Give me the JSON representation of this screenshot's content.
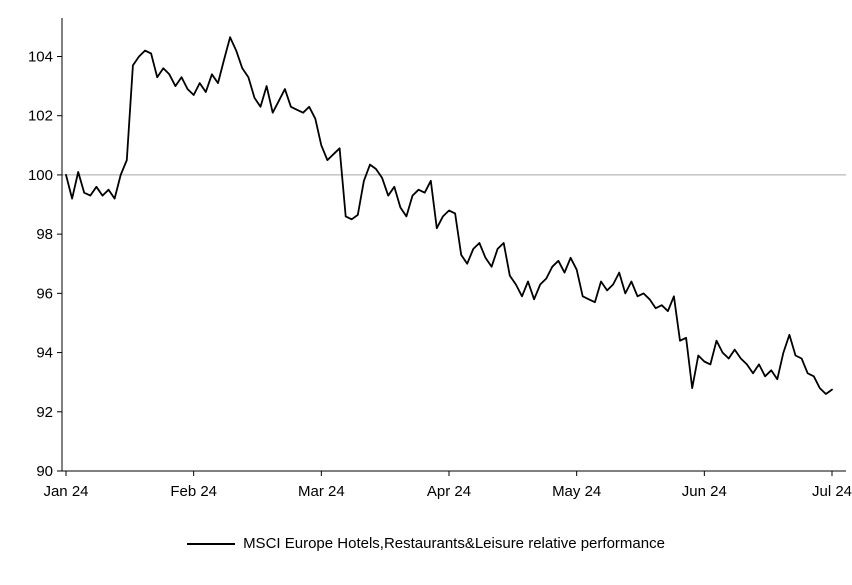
{
  "chart_data": {
    "type": "line",
    "title": "",
    "legend": "MSCI Europe Hotels,Restaurants&Leisure relative performance",
    "x_tick_labels": [
      "Jan 24",
      "Feb 24",
      "Mar 24",
      "Apr 24",
      "May 24",
      "Jun 24",
      "Jul 24"
    ],
    "x_tick_indices": [
      0,
      21,
      42,
      63,
      84,
      105,
      126
    ],
    "y_ticks": [
      90,
      92,
      94,
      96,
      98,
      100,
      102,
      104
    ],
    "ylim": [
      90,
      105.3
    ],
    "baseline": 100,
    "line_color": "#000000",
    "axis_color": "#000000",
    "gridline_color": "#a6a6a6",
    "grid": "horizontal line at 100 only",
    "legend_position": "bottom center",
    "values": [
      100.0,
      99.2,
      100.1,
      99.4,
      99.3,
      99.6,
      99.3,
      99.5,
      99.2,
      100.0,
      100.5,
      103.7,
      104.0,
      104.2,
      104.1,
      103.3,
      103.6,
      103.4,
      103.0,
      103.3,
      102.9,
      102.7,
      103.1,
      102.8,
      103.4,
      103.1,
      103.9,
      104.65,
      104.2,
      103.6,
      103.3,
      102.6,
      102.3,
      103.0,
      102.1,
      102.5,
      102.9,
      102.3,
      102.2,
      102.1,
      102.3,
      101.9,
      101.0,
      100.5,
      100.7,
      100.9,
      98.6,
      98.5,
      98.65,
      99.8,
      100.35,
      100.2,
      99.9,
      99.3,
      99.6,
      98.9,
      98.6,
      99.3,
      99.5,
      99.4,
      99.8,
      98.2,
      98.6,
      98.8,
      98.7,
      97.3,
      97.0,
      97.5,
      97.7,
      97.2,
      96.9,
      97.5,
      97.7,
      96.6,
      96.3,
      95.9,
      96.4,
      95.8,
      96.3,
      96.5,
      96.9,
      97.1,
      96.7,
      97.2,
      96.8,
      95.9,
      95.8,
      95.7,
      96.4,
      96.1,
      96.3,
      96.7,
      96.0,
      96.4,
      95.9,
      96.0,
      95.8,
      95.5,
      95.6,
      95.4,
      95.9,
      94.4,
      94.5,
      92.8,
      93.9,
      93.7,
      93.6,
      94.4,
      94.0,
      93.8,
      94.1,
      93.8,
      93.6,
      93.3,
      93.6,
      93.2,
      93.4,
      93.1,
      94.0,
      94.6,
      93.9,
      93.8,
      93.3,
      93.2,
      92.8,
      92.6,
      92.75
    ]
  }
}
